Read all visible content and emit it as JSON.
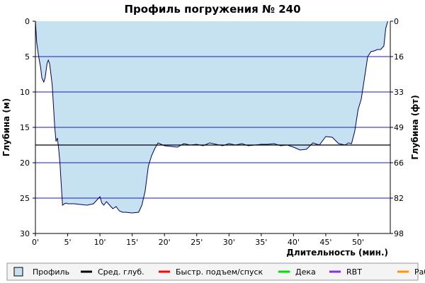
{
  "chart_data": {
    "type": "area",
    "title": "Профиль погружения № 240",
    "xlabel": "Длительность (мин.)",
    "ylabel_left": "Глубина (м)",
    "ylabel_right": "Глубина (фт)",
    "xlim": [
      0,
      55
    ],
    "ylim": [
      0,
      30
    ],
    "y_inverted": true,
    "x_ticks": [
      "0'",
      "5'",
      "10'",
      "15'",
      "20'",
      "25'",
      "30'",
      "35'",
      "40'",
      "45'",
      "50'"
    ],
    "x_tick_values": [
      0,
      5,
      10,
      15,
      20,
      25,
      30,
      35,
      40,
      45,
      50
    ],
    "y_ticks_left": [
      "0",
      "5",
      "10",
      "15",
      "20",
      "25",
      "30"
    ],
    "y_tick_values_left": [
      0,
      5,
      10,
      15,
      20,
      25,
      30
    ],
    "y_ticks_right": [
      "0",
      "16",
      "33",
      "49",
      "66",
      "82",
      "98"
    ],
    "grid": "horizontal",
    "average_depth": 17.5,
    "series": [
      {
        "name": "Профиль",
        "color": "#c6e2f0",
        "x": [
          0,
          0.2,
          0.5,
          0.8,
          1.0,
          1.3,
          1.5,
          1.8,
          2.0,
          2.2,
          2.4,
          2.6,
          2.8,
          3.0,
          3.2,
          3.4,
          3.6,
          3.8,
          4.0,
          4.2,
          4.5,
          4.8,
          5.0,
          5.5,
          6.0,
          7.0,
          8.0,
          9.0,
          10.0,
          10.3,
          10.6,
          11.0,
          11.5,
          12.0,
          12.5,
          13.0,
          13.5,
          14.0,
          15.0,
          16.0,
          16.5,
          17.0,
          17.5,
          18.0,
          18.5,
          19.0,
          19.5,
          20.0,
          21.0,
          22.0,
          23.0,
          24.0,
          25.0,
          26.0,
          27.0,
          28.0,
          29.0,
          30.0,
          31.0,
          32.0,
          33.0,
          34.0,
          35.0,
          36.0,
          37.0,
          38.0,
          39.0,
          40.0,
          41.0,
          42.0,
          43.0,
          44.0,
          45.0,
          46.0,
          47.0,
          48.0,
          48.5,
          49.0,
          49.5,
          50.0,
          50.5,
          51.0,
          51.5,
          52.0,
          52.5,
          53.0,
          53.5,
          54.0,
          54.3,
          54.6
        ],
        "y": [
          0,
          3.0,
          5.0,
          6.5,
          8.0,
          8.6,
          8.0,
          6.0,
          5.5,
          6.0,
          7.5,
          9.0,
          12.0,
          15.0,
          17.0,
          16.5,
          18.0,
          20.0,
          23.0,
          26.0,
          25.8,
          25.7,
          25.8,
          25.8,
          25.8,
          25.9,
          26.0,
          25.8,
          24.8,
          25.7,
          26.0,
          25.5,
          26.0,
          26.5,
          26.2,
          26.8,
          27.0,
          27.0,
          27.1,
          27.0,
          26.0,
          24.0,
          20.5,
          19.0,
          18.0,
          17.2,
          17.4,
          17.6,
          17.7,
          17.8,
          17.3,
          17.5,
          17.4,
          17.6,
          17.2,
          17.4,
          17.6,
          17.3,
          17.5,
          17.3,
          17.6,
          17.5,
          17.4,
          17.4,
          17.3,
          17.6,
          17.5,
          17.8,
          18.2,
          18.1,
          17.2,
          17.5,
          16.3,
          16.4,
          17.3,
          17.5,
          17.2,
          17.3,
          15.5,
          12.5,
          11.0,
          8.0,
          5.0,
          4.3,
          4.2,
          4.0,
          4.0,
          3.5,
          1.0,
          0
        ]
      }
    ],
    "legend": [
      {
        "label": "Профиль",
        "color": "#c6e2f0"
      },
      {
        "label": "Сред. глуб.",
        "color": "#000000"
      },
      {
        "label": "Быстр. подъем/спуск",
        "color": "#ff0000"
      },
      {
        "label": "Дека",
        "color": "#00dd00"
      },
      {
        "label": "RBT",
        "color": "#8e2ee0"
      },
      {
        "label": "Раб.",
        "color": "#ff9900"
      }
    ],
    "legend_placement": "bottom"
  },
  "colors": {
    "grid": "#1a1acc",
    "outline": "#000066",
    "fill": "#c6e2f0",
    "avg_line": "#000000",
    "legend_bg": "#f4f4f4"
  }
}
